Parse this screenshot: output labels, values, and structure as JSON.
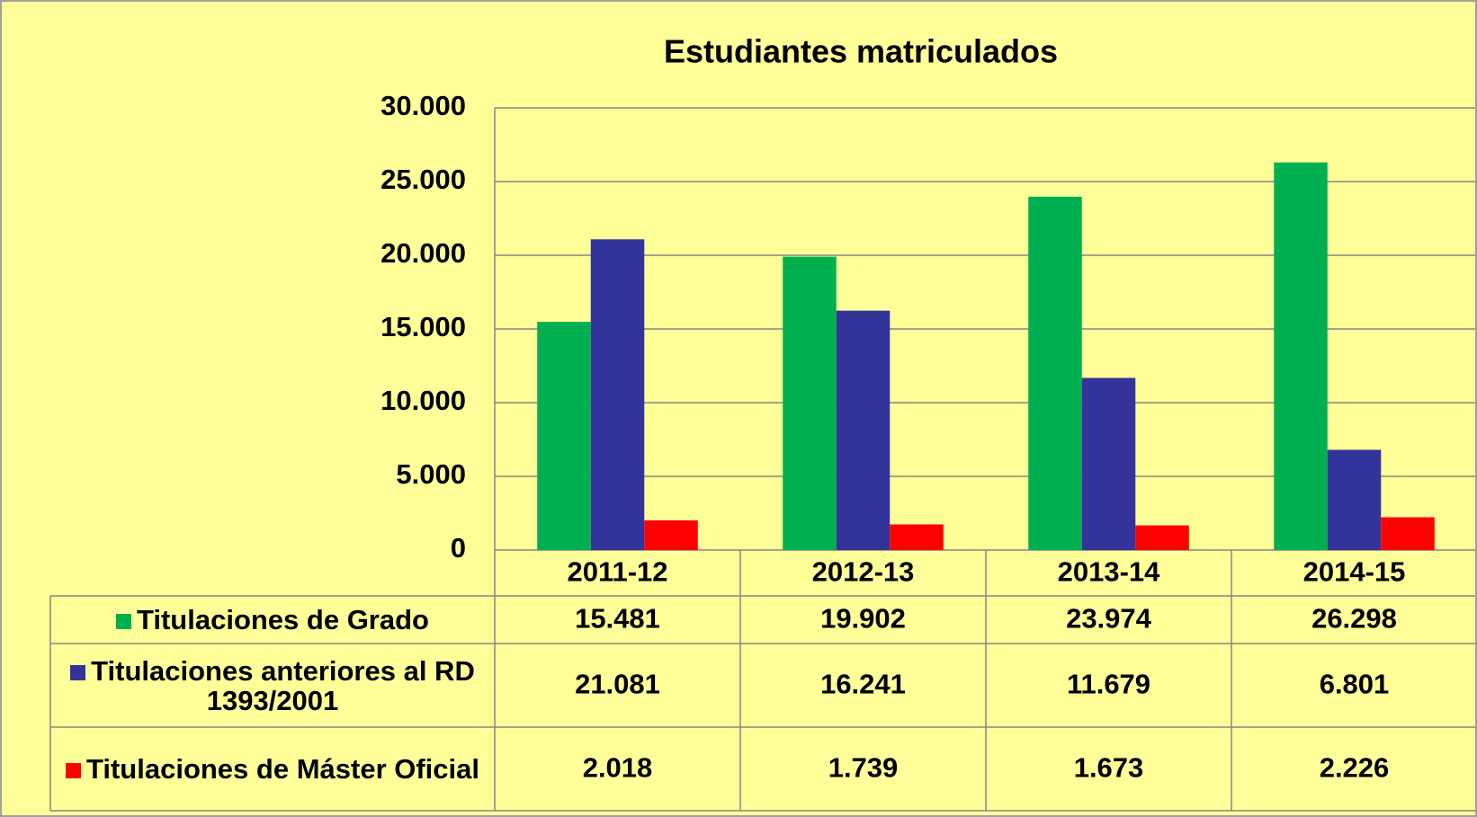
{
  "chart_data": {
    "type": "bar",
    "title": "Estudiantes matriculados",
    "categories": [
      "2011-12",
      "2012-13",
      "2013-14",
      "2014-15"
    ],
    "series": [
      {
        "name": "Titulaciones de Grado",
        "color": "#00b050",
        "values": [
          15481,
          19902,
          23974,
          26298
        ],
        "value_labels": [
          "15.481",
          "19.902",
          "23.974",
          "26.298"
        ]
      },
      {
        "name": "Titulaciones anteriores al RD 1393/2001",
        "color": "#333399",
        "values": [
          21081,
          16241,
          11679,
          6801
        ],
        "value_labels": [
          "21.081",
          "16.241",
          "11.679",
          "6.801"
        ]
      },
      {
        "name": "Titulaciones de Máster Oficial",
        "color": "#ff0000",
        "values": [
          2018,
          1739,
          1673,
          2226
        ],
        "value_labels": [
          "2.018",
          "1.739",
          "1.673",
          "2.226"
        ]
      }
    ],
    "ylim": [
      0,
      30000
    ],
    "yticks": [
      0,
      {
        "value": 5000,
        "label": "5.000"
      },
      {
        "value": 10000,
        "label": "10.000"
      },
      {
        "value": 15000,
        "label": "15.000"
      },
      {
        "value": 20000,
        "label": "20.000"
      },
      {
        "value": 25000,
        "label": "25.000"
      },
      {
        "value": 30000,
        "label": "30.000"
      }
    ],
    "grid": true
  }
}
